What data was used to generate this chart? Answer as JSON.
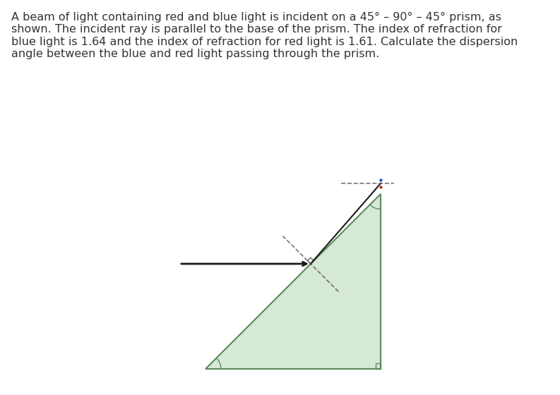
{
  "title_text": "A beam of light containing red and blue light is incident on a 45° – 90° – 45° prism, as\nshown. The incident ray is parallel to the base of the prism. The index of refraction for\nblue light is 1.64 and the index of refraction for red light is 1.61. Calculate the dispersion\nangle between the blue and red light passing through the prism.",
  "n_blue": 1.64,
  "n_red": 1.61,
  "prism_color": "#d6e8d6",
  "prism_edge_color": "#5a8a5a",
  "prism_edge_width": 1.5,
  "incident_color": "#1a1a1a",
  "red_color": "#cc2200",
  "blue_color": "#2244cc",
  "normal_color": "#555555",
  "bg_color": "#ffffff",
  "text_color": "#333333",
  "font_size": 11.5
}
